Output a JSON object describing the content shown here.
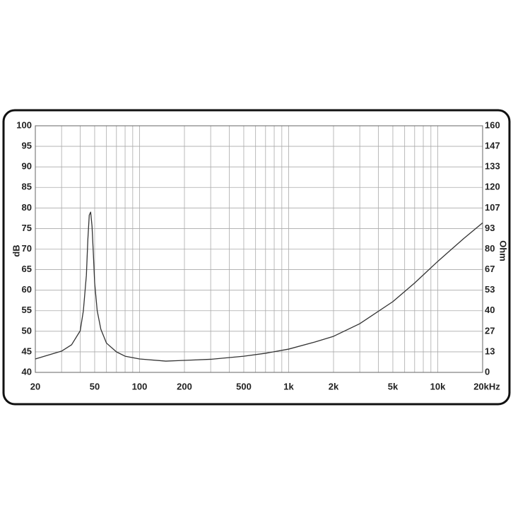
{
  "chart_data": {
    "type": "line",
    "log_x": true,
    "grid": true,
    "ylabel": "dB",
    "y2label": "Ohm",
    "xlim": [
      20,
      20000
    ],
    "xticks": [
      20,
      50,
      100,
      200,
      500,
      {
        "value": 1000,
        "label": "1k"
      },
      {
        "value": 2000,
        "label": "2k"
      },
      {
        "value": 5000,
        "label": "5k"
      },
      {
        "value": 10000,
        "label": "10k"
      },
      {
        "value": 20000,
        "label": "20kHz"
      }
    ],
    "minor_xticks": [
      30,
      40,
      60,
      70,
      80,
      90,
      300,
      400,
      600,
      700,
      800,
      900,
      3000,
      4000,
      6000,
      7000,
      8000,
      9000
    ],
    "ylim": [
      40,
      100
    ],
    "yticks": [
      40,
      45,
      50,
      55,
      60,
      65,
      70,
      75,
      80,
      85,
      90,
      95,
      100
    ],
    "y2lim": [
      0,
      160
    ],
    "y2ticks": [
      0,
      {
        "value": 13.33,
        "label": "13"
      },
      {
        "value": 26.67,
        "label": "27"
      },
      40,
      {
        "value": 53.33,
        "label": "53"
      },
      {
        "value": 66.67,
        "label": "67"
      },
      80,
      {
        "value": 93.33,
        "label": "93"
      },
      {
        "value": 106.67,
        "label": "107"
      },
      120,
      {
        "value": 133.33,
        "label": "133"
      },
      {
        "value": 146.67,
        "label": "147"
      },
      160
    ],
    "x": [
      20,
      30,
      35,
      40,
      42,
      44,
      45,
      46,
      47,
      48,
      49,
      50,
      52,
      55,
      60,
      70,
      80,
      100,
      150,
      200,
      300,
      500,
      700,
      1000,
      1500,
      2000,
      3000,
      5000,
      7000,
      10000,
      15000,
      20000
    ],
    "series": [
      {
        "axis": "y2",
        "color": "#333333",
        "values": [
          8.7,
          13.8,
          17.9,
          27,
          40,
          63,
          86,
          102,
          104,
          95,
          77,
          58,
          40,
          28,
          19,
          13.3,
          10.5,
          8.7,
          7.3,
          7.8,
          8.5,
          10.5,
          12.4,
          15.1,
          19.7,
          23.4,
          31.6,
          45.9,
          58,
          72,
          87,
          97
        ]
      }
    ]
  }
}
